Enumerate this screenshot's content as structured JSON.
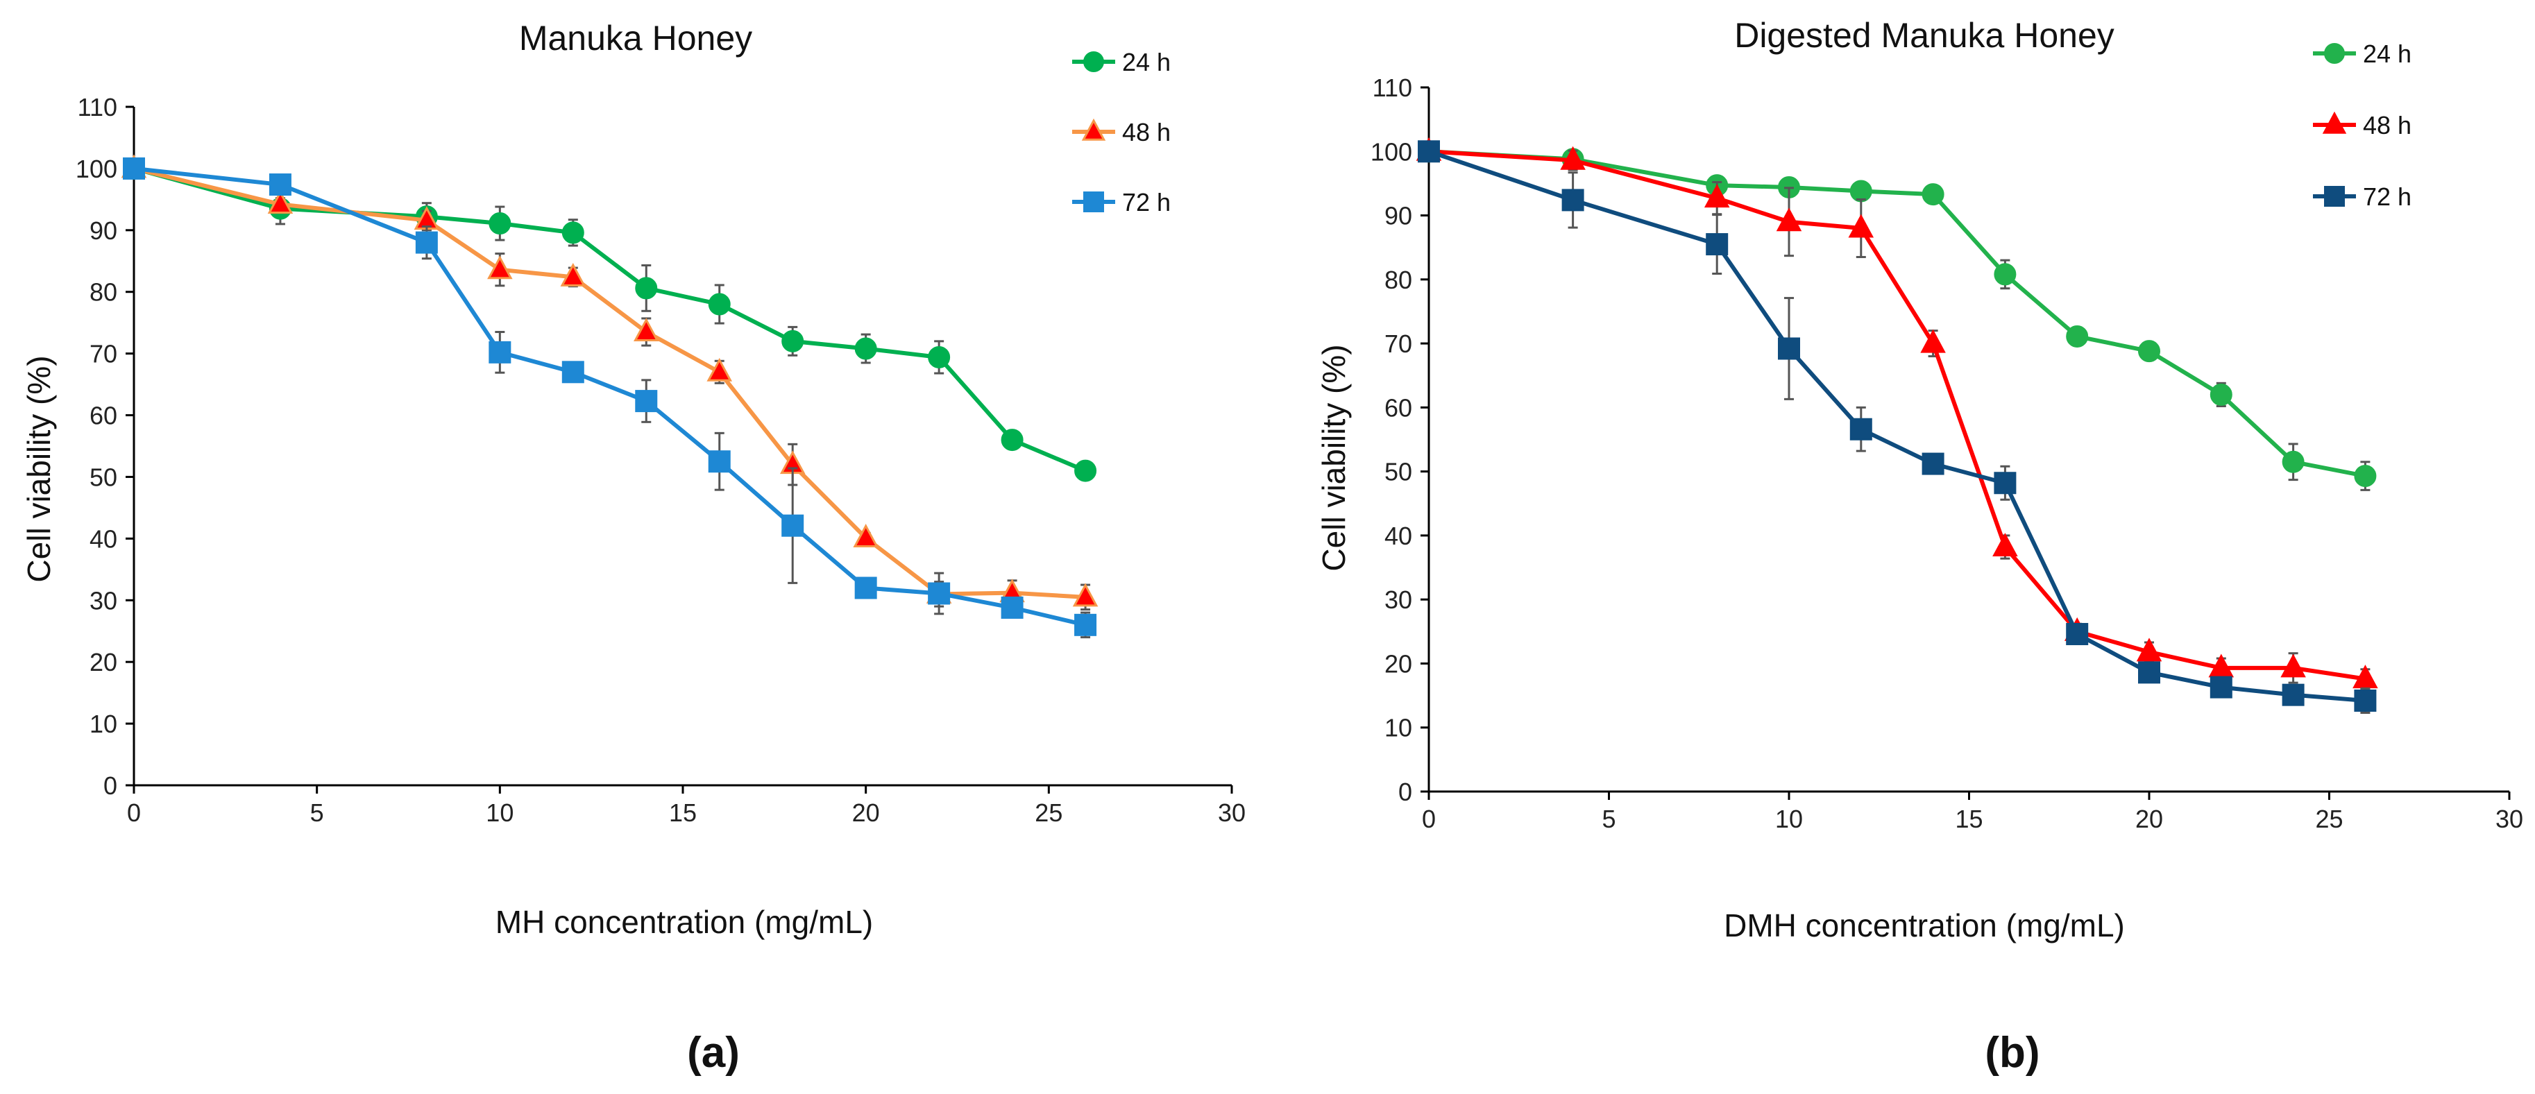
{
  "chart_data": [
    {
      "type": "line",
      "panel_label": "(a)",
      "title": "Manuka Honey",
      "xlabel": "MH concentration (mg/mL)",
      "ylabel": "Cell viability (%)",
      "xlim": [
        0,
        30
      ],
      "ylim": [
        0,
        110
      ],
      "xticks": [
        0,
        5,
        10,
        15,
        20,
        25,
        30
      ],
      "yticks": [
        0,
        10,
        20,
        30,
        40,
        50,
        60,
        70,
        80,
        90,
        100,
        110
      ],
      "grid": false,
      "legend": "top-right",
      "x": [
        0,
        4,
        8,
        10,
        12,
        14,
        16,
        18,
        20,
        22,
        24,
        26
      ],
      "series": [
        {
          "name": "24 h",
          "marker": "circle",
          "line_color": "#00B050",
          "marker_color": "#00B050",
          "values": [
            100,
            93.5,
            92.2,
            91.1,
            89.6,
            80.6,
            78,
            72,
            70.8,
            69.4,
            56,
            51
          ],
          "errors": [
            0.5,
            2.5,
            2.2,
            2.7,
            2.1,
            3.7,
            3.1,
            2.3,
            2.3,
            2.6,
            1,
            0.5
          ]
        },
        {
          "name": "48 h",
          "marker": "triangle",
          "line_color": "#F79646",
          "marker_color": "#FF0000",
          "values": [
            100,
            94.2,
            91.6,
            83.6,
            82.4,
            73.5,
            67,
            52,
            40.1,
            31,
            31.2,
            30.5
          ],
          "errors": [
            0.5,
            1,
            1.5,
            2.6,
            1.5,
            2.2,
            1.8,
            3.3,
            0.8,
            2,
            2,
            2
          ]
        },
        {
          "name": "72 h",
          "marker": "square",
          "line_color": "#1E88D4",
          "marker_color": "#1E88D4",
          "values": [
            100,
            97.4,
            88,
            70.2,
            67,
            62.3,
            52.5,
            42.1,
            32,
            31.1,
            28.8,
            26
          ],
          "errors": [
            0.5,
            0.5,
            2.6,
            3.3,
            0.7,
            3.4,
            4.6,
            9.3,
            0.5,
            3.3,
            1,
            2
          ]
        }
      ]
    },
    {
      "type": "line",
      "panel_label": "(b)",
      "title": "Digested Manuka Honey",
      "xlabel": "DMH concentration (mg/mL)",
      "ylabel": "Cell viability (%)",
      "xlim": [
        0,
        30
      ],
      "ylim": [
        0,
        110
      ],
      "xticks": [
        0,
        5,
        10,
        15,
        20,
        25,
        30
      ],
      "yticks": [
        0,
        10,
        20,
        30,
        40,
        50,
        60,
        70,
        80,
        90,
        100,
        110
      ],
      "grid": false,
      "legend": "top-right",
      "x": [
        0,
        4,
        8,
        10,
        12,
        14,
        16,
        18,
        20,
        22,
        24,
        26
      ],
      "series": [
        {
          "name": "24 h",
          "marker": "circle",
          "line_color": "#22B24C",
          "marker_color": "#22B24C",
          "values": [
            100,
            98.8,
            94.7,
            94.4,
            93.8,
            93.3,
            80.8,
            71.1,
            68.8,
            62,
            51.5,
            49.3
          ],
          "errors": [
            0.5,
            0.5,
            0.5,
            0.5,
            0.5,
            0.5,
            2.2,
            0.5,
            0.5,
            1.8,
            2.8,
            2.2
          ]
        },
        {
          "name": "48 h",
          "marker": "triangle",
          "line_color": "#FF0000",
          "marker_color": "#FF0000",
          "values": [
            100,
            98.6,
            92.7,
            89,
            88,
            70,
            38.2,
            25,
            21.8,
            19.3,
            19.3,
            17.6
          ],
          "errors": [
            0.5,
            1.5,
            2.5,
            5.3,
            4.5,
            2,
            1.8,
            1.2,
            1.5,
            1.5,
            2.3,
            1.5
          ]
        },
        {
          "name": "72 h",
          "marker": "square",
          "line_color": "#0F4C7E",
          "marker_color": "#0F4C7E",
          "values": [
            100,
            92.4,
            85.5,
            69.2,
            56.6,
            51.2,
            48.2,
            24.6,
            18.6,
            16.3,
            15.1,
            14.2
          ],
          "errors": [
            0.5,
            4.3,
            4.6,
            7.9,
            3.4,
            0.8,
            2.6,
            1,
            1,
            1,
            1.5,
            1.9
          ]
        }
      ]
    }
  ]
}
